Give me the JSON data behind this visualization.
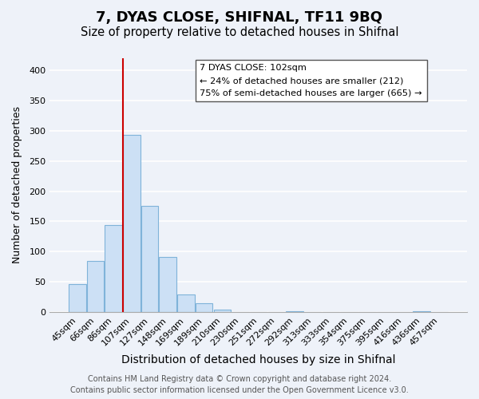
{
  "title": "7, DYAS CLOSE, SHIFNAL, TF11 9BQ",
  "subtitle": "Size of property relative to detached houses in Shifnal",
  "xlabel": "Distribution of detached houses by size in Shifnal",
  "ylabel": "Number of detached properties",
  "bar_labels": [
    "45sqm",
    "66sqm",
    "86sqm",
    "107sqm",
    "127sqm",
    "148sqm",
    "169sqm",
    "189sqm",
    "210sqm",
    "230sqm",
    "251sqm",
    "272sqm",
    "292sqm",
    "313sqm",
    "333sqm",
    "354sqm",
    "375sqm",
    "395sqm",
    "416sqm",
    "436sqm",
    "457sqm"
  ],
  "bar_values": [
    47,
    85,
    144,
    293,
    175,
    91,
    30,
    15,
    5,
    0,
    0,
    0,
    2,
    0,
    0,
    0,
    0,
    0,
    0,
    2,
    0
  ],
  "bar_color": "#cce0f5",
  "bar_edge_color": "#7fb3d9",
  "vline_x": 2.525,
  "vline_color": "#cc0000",
  "ylim": [
    0,
    420
  ],
  "yticks": [
    0,
    50,
    100,
    150,
    200,
    250,
    300,
    350,
    400
  ],
  "annotation_title": "7 DYAS CLOSE: 102sqm",
  "annotation_line1": "← 24% of detached houses are smaller (212)",
  "annotation_line2": "75% of semi-detached houses are larger (665) →",
  "footer_line1": "Contains HM Land Registry data © Crown copyright and database right 2024.",
  "footer_line2": "Contains public sector information licensed under the Open Government Licence v3.0.",
  "background_color": "#eef2f9",
  "grid_color": "#ffffff",
  "title_fontsize": 13,
  "subtitle_fontsize": 10.5,
  "xlabel_fontsize": 10,
  "ylabel_fontsize": 9,
  "tick_fontsize": 8,
  "footer_fontsize": 7
}
